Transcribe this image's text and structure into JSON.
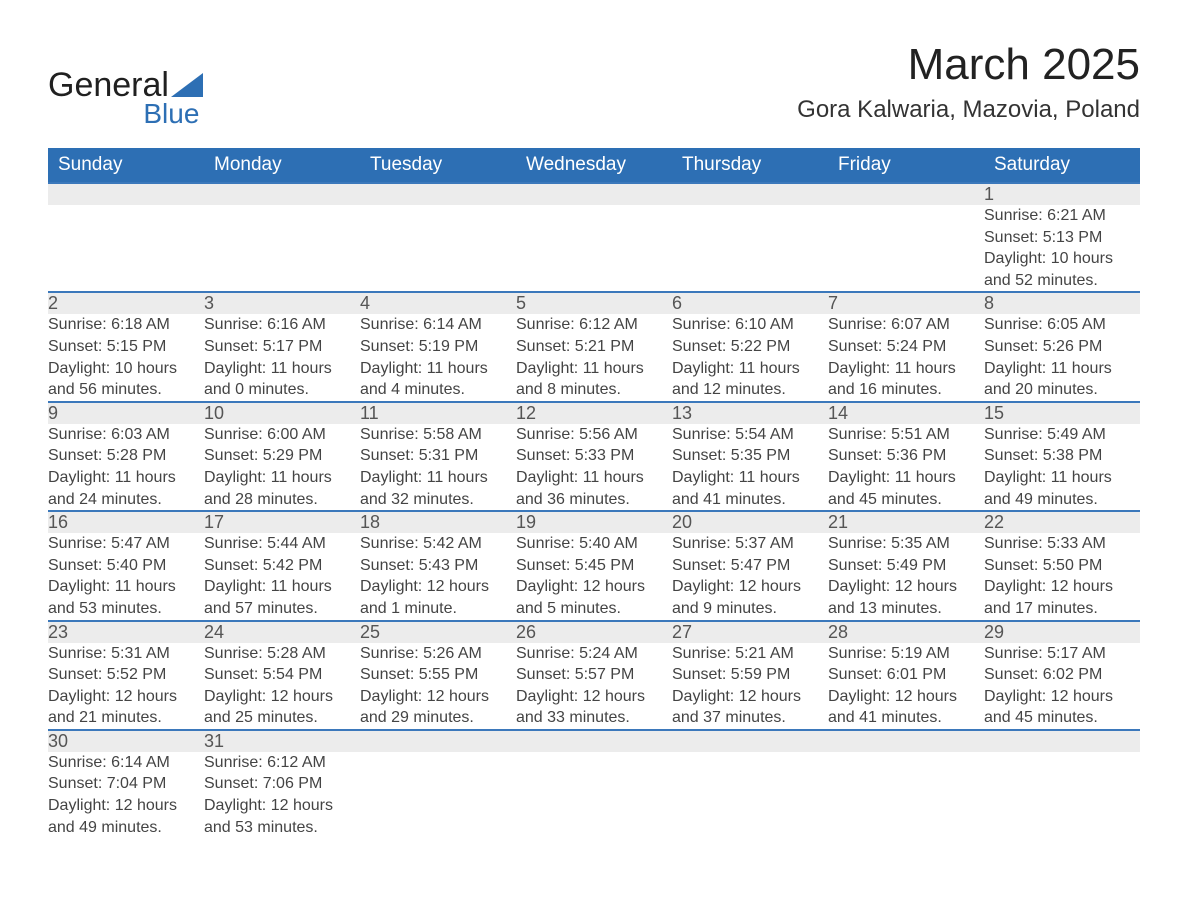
{
  "brand": {
    "name": "General",
    "sub": "Blue"
  },
  "title": "March 2025",
  "location": "Gora Kalwaria, Mazovia, Poland",
  "colors": {
    "header_bg": "#2d6fb4",
    "header_text": "#ffffff",
    "row_border": "#3b78bb",
    "daynum_bg": "#ececec",
    "body_text": "#444444",
    "page_bg": "#ffffff"
  },
  "fonts": {
    "family": "Arial",
    "title_size_pt": 33,
    "location_size_pt": 18,
    "header_size_pt": 14,
    "cell_size_pt": 12
  },
  "calendar": {
    "day_headers": [
      "Sunday",
      "Monday",
      "Tuesday",
      "Wednesday",
      "Thursday",
      "Friday",
      "Saturday"
    ],
    "weeks": [
      [
        null,
        null,
        null,
        null,
        null,
        null,
        {
          "n": "1",
          "sunrise": "Sunrise: 6:21 AM",
          "sunset": "Sunset: 5:13 PM",
          "daylight1": "Daylight: 10 hours",
          "daylight2": "and 52 minutes."
        }
      ],
      [
        {
          "n": "2",
          "sunrise": "Sunrise: 6:18 AM",
          "sunset": "Sunset: 5:15 PM",
          "daylight1": "Daylight: 10 hours",
          "daylight2": "and 56 minutes."
        },
        {
          "n": "3",
          "sunrise": "Sunrise: 6:16 AM",
          "sunset": "Sunset: 5:17 PM",
          "daylight1": "Daylight: 11 hours",
          "daylight2": "and 0 minutes."
        },
        {
          "n": "4",
          "sunrise": "Sunrise: 6:14 AM",
          "sunset": "Sunset: 5:19 PM",
          "daylight1": "Daylight: 11 hours",
          "daylight2": "and 4 minutes."
        },
        {
          "n": "5",
          "sunrise": "Sunrise: 6:12 AM",
          "sunset": "Sunset: 5:21 PM",
          "daylight1": "Daylight: 11 hours",
          "daylight2": "and 8 minutes."
        },
        {
          "n": "6",
          "sunrise": "Sunrise: 6:10 AM",
          "sunset": "Sunset: 5:22 PM",
          "daylight1": "Daylight: 11 hours",
          "daylight2": "and 12 minutes."
        },
        {
          "n": "7",
          "sunrise": "Sunrise: 6:07 AM",
          "sunset": "Sunset: 5:24 PM",
          "daylight1": "Daylight: 11 hours",
          "daylight2": "and 16 minutes."
        },
        {
          "n": "8",
          "sunrise": "Sunrise: 6:05 AM",
          "sunset": "Sunset: 5:26 PM",
          "daylight1": "Daylight: 11 hours",
          "daylight2": "and 20 minutes."
        }
      ],
      [
        {
          "n": "9",
          "sunrise": "Sunrise: 6:03 AM",
          "sunset": "Sunset: 5:28 PM",
          "daylight1": "Daylight: 11 hours",
          "daylight2": "and 24 minutes."
        },
        {
          "n": "10",
          "sunrise": "Sunrise: 6:00 AM",
          "sunset": "Sunset: 5:29 PM",
          "daylight1": "Daylight: 11 hours",
          "daylight2": "and 28 minutes."
        },
        {
          "n": "11",
          "sunrise": "Sunrise: 5:58 AM",
          "sunset": "Sunset: 5:31 PM",
          "daylight1": "Daylight: 11 hours",
          "daylight2": "and 32 minutes."
        },
        {
          "n": "12",
          "sunrise": "Sunrise: 5:56 AM",
          "sunset": "Sunset: 5:33 PM",
          "daylight1": "Daylight: 11 hours",
          "daylight2": "and 36 minutes."
        },
        {
          "n": "13",
          "sunrise": "Sunrise: 5:54 AM",
          "sunset": "Sunset: 5:35 PM",
          "daylight1": "Daylight: 11 hours",
          "daylight2": "and 41 minutes."
        },
        {
          "n": "14",
          "sunrise": "Sunrise: 5:51 AM",
          "sunset": "Sunset: 5:36 PM",
          "daylight1": "Daylight: 11 hours",
          "daylight2": "and 45 minutes."
        },
        {
          "n": "15",
          "sunrise": "Sunrise: 5:49 AM",
          "sunset": "Sunset: 5:38 PM",
          "daylight1": "Daylight: 11 hours",
          "daylight2": "and 49 minutes."
        }
      ],
      [
        {
          "n": "16",
          "sunrise": "Sunrise: 5:47 AM",
          "sunset": "Sunset: 5:40 PM",
          "daylight1": "Daylight: 11 hours",
          "daylight2": "and 53 minutes."
        },
        {
          "n": "17",
          "sunrise": "Sunrise: 5:44 AM",
          "sunset": "Sunset: 5:42 PM",
          "daylight1": "Daylight: 11 hours",
          "daylight2": "and 57 minutes."
        },
        {
          "n": "18",
          "sunrise": "Sunrise: 5:42 AM",
          "sunset": "Sunset: 5:43 PM",
          "daylight1": "Daylight: 12 hours",
          "daylight2": "and 1 minute."
        },
        {
          "n": "19",
          "sunrise": "Sunrise: 5:40 AM",
          "sunset": "Sunset: 5:45 PM",
          "daylight1": "Daylight: 12 hours",
          "daylight2": "and 5 minutes."
        },
        {
          "n": "20",
          "sunrise": "Sunrise: 5:37 AM",
          "sunset": "Sunset: 5:47 PM",
          "daylight1": "Daylight: 12 hours",
          "daylight2": "and 9 minutes."
        },
        {
          "n": "21",
          "sunrise": "Sunrise: 5:35 AM",
          "sunset": "Sunset: 5:49 PM",
          "daylight1": "Daylight: 12 hours",
          "daylight2": "and 13 minutes."
        },
        {
          "n": "22",
          "sunrise": "Sunrise: 5:33 AM",
          "sunset": "Sunset: 5:50 PM",
          "daylight1": "Daylight: 12 hours",
          "daylight2": "and 17 minutes."
        }
      ],
      [
        {
          "n": "23",
          "sunrise": "Sunrise: 5:31 AM",
          "sunset": "Sunset: 5:52 PM",
          "daylight1": "Daylight: 12 hours",
          "daylight2": "and 21 minutes."
        },
        {
          "n": "24",
          "sunrise": "Sunrise: 5:28 AM",
          "sunset": "Sunset: 5:54 PM",
          "daylight1": "Daylight: 12 hours",
          "daylight2": "and 25 minutes."
        },
        {
          "n": "25",
          "sunrise": "Sunrise: 5:26 AM",
          "sunset": "Sunset: 5:55 PM",
          "daylight1": "Daylight: 12 hours",
          "daylight2": "and 29 minutes."
        },
        {
          "n": "26",
          "sunrise": "Sunrise: 5:24 AM",
          "sunset": "Sunset: 5:57 PM",
          "daylight1": "Daylight: 12 hours",
          "daylight2": "and 33 minutes."
        },
        {
          "n": "27",
          "sunrise": "Sunrise: 5:21 AM",
          "sunset": "Sunset: 5:59 PM",
          "daylight1": "Daylight: 12 hours",
          "daylight2": "and 37 minutes."
        },
        {
          "n": "28",
          "sunrise": "Sunrise: 5:19 AM",
          "sunset": "Sunset: 6:01 PM",
          "daylight1": "Daylight: 12 hours",
          "daylight2": "and 41 minutes."
        },
        {
          "n": "29",
          "sunrise": "Sunrise: 5:17 AM",
          "sunset": "Sunset: 6:02 PM",
          "daylight1": "Daylight: 12 hours",
          "daylight2": "and 45 minutes."
        }
      ],
      [
        {
          "n": "30",
          "sunrise": "Sunrise: 6:14 AM",
          "sunset": "Sunset: 7:04 PM",
          "daylight1": "Daylight: 12 hours",
          "daylight2": "and 49 minutes."
        },
        {
          "n": "31",
          "sunrise": "Sunrise: 6:12 AM",
          "sunset": "Sunset: 7:06 PM",
          "daylight1": "Daylight: 12 hours",
          "daylight2": "and 53 minutes."
        },
        null,
        null,
        null,
        null,
        null
      ]
    ]
  }
}
